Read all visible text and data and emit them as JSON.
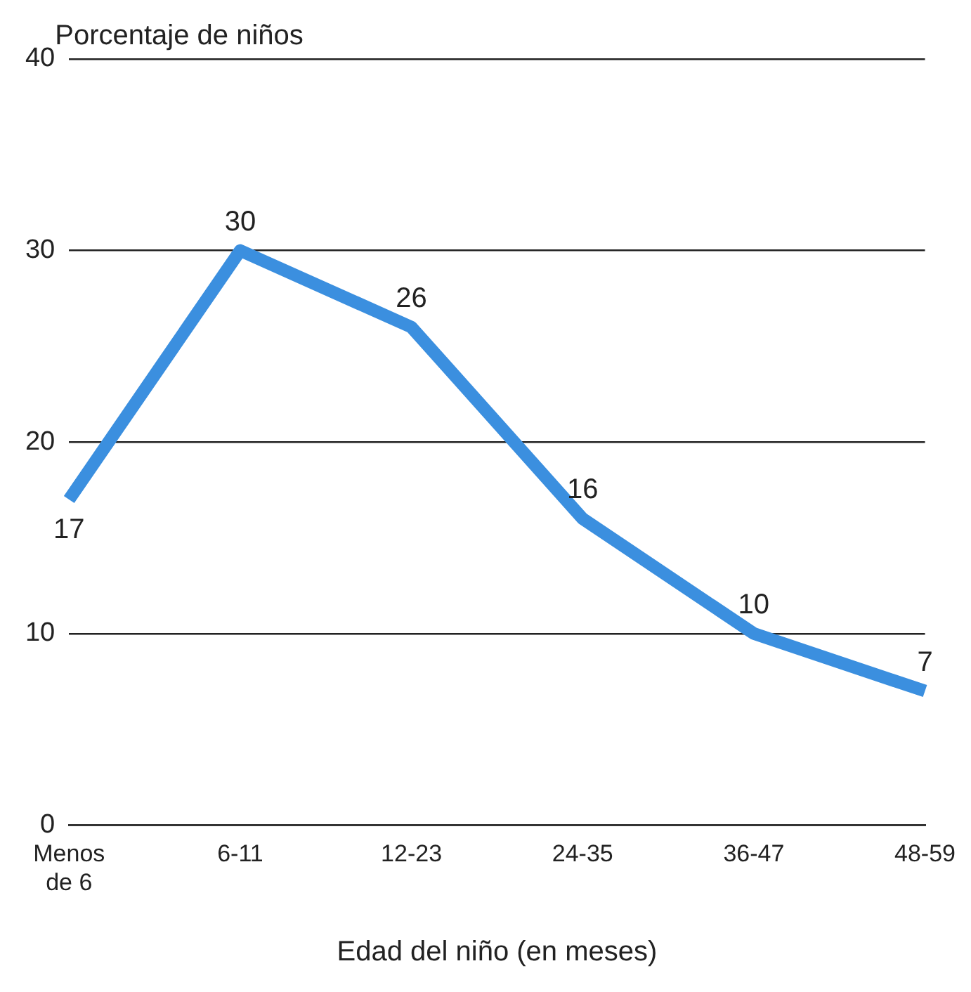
{
  "chart_data": {
    "type": "line",
    "ylabel": "Porcentaje de niños",
    "xlabel": "Edad del niño (en meses)",
    "categories": [
      "Menos de 6",
      "6-11",
      "12-23",
      "24-35",
      "36-47",
      "48-59"
    ],
    "values": [
      17,
      30,
      26,
      16,
      10,
      7
    ],
    "color": "#3b8fdf",
    "ylim": [
      0,
      40
    ],
    "yticks": [
      0,
      10,
      20,
      30,
      40
    ],
    "grid": "y",
    "data_labels": true,
    "marker": "none",
    "line_style": "solid"
  }
}
